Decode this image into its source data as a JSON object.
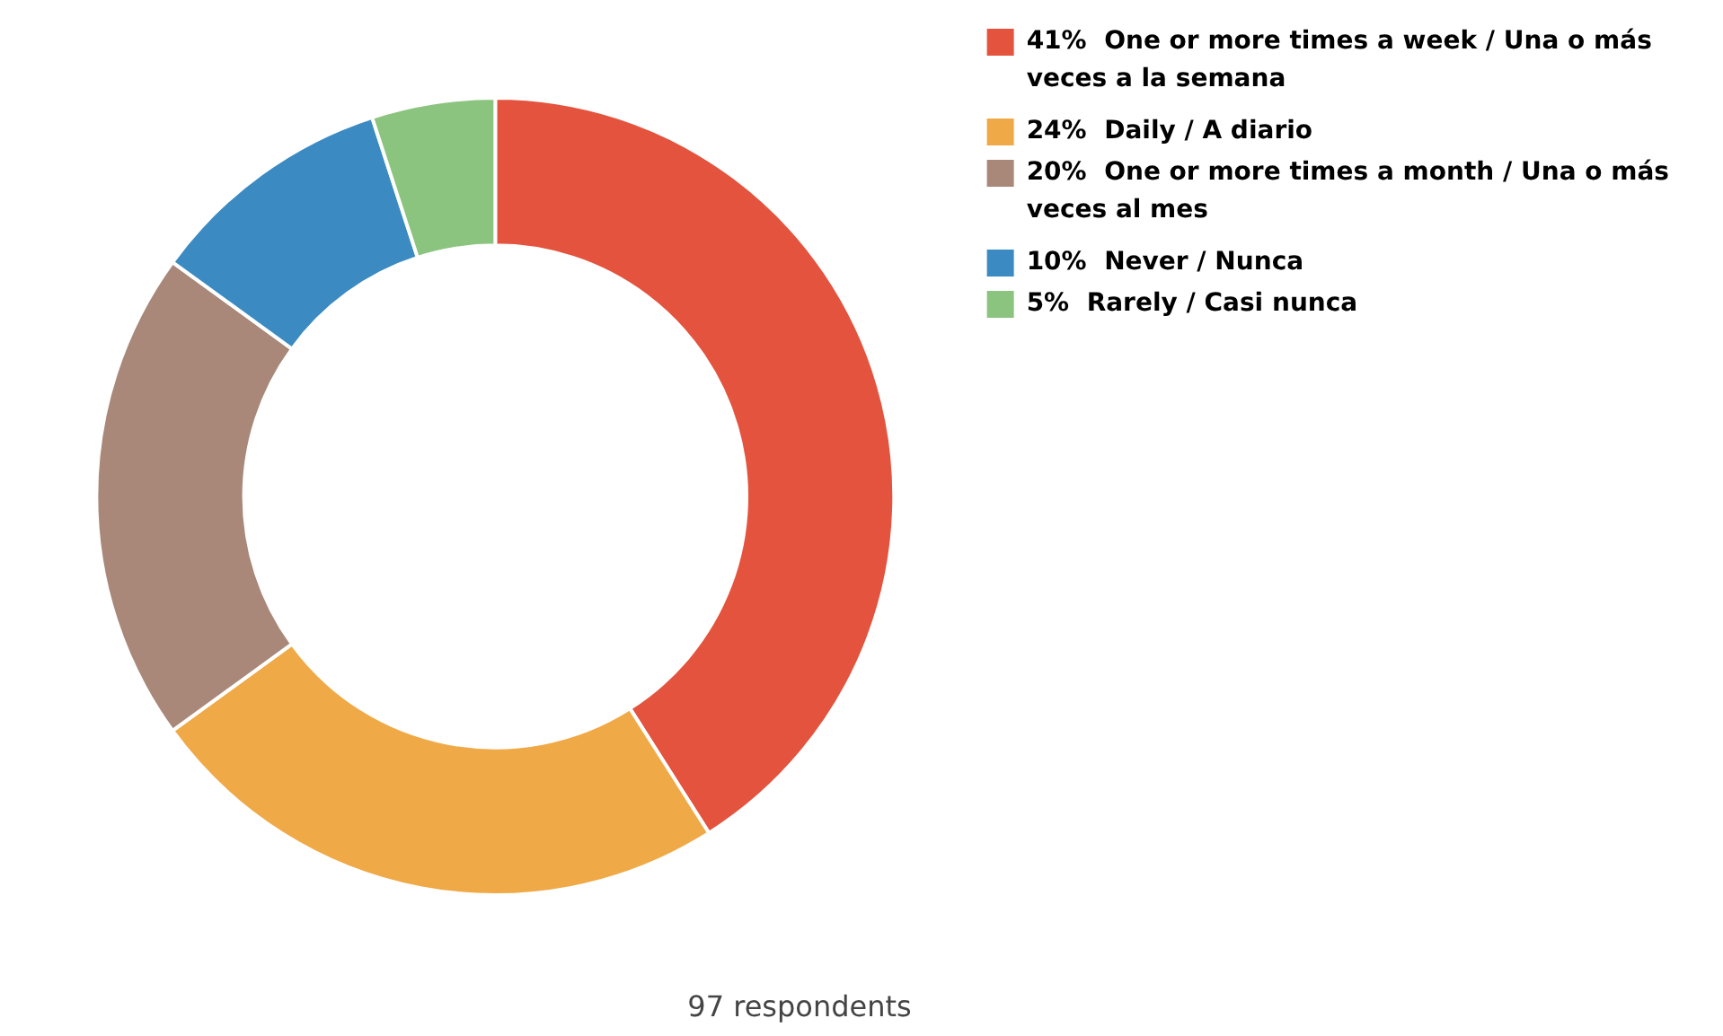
{
  "chart_data": {
    "type": "donut",
    "categories": [
      "One or more times a week / Una o más veces a la semana",
      "Daily / A diario",
      "One or more times a month / Una o más veces al mes",
      "Never / Nunca",
      "Rarely / Casi nunca"
    ],
    "values": [
      41,
      24,
      20,
      10,
      5
    ],
    "value_labels": [
      "41%",
      "24%",
      "20%",
      "10%",
      "5%"
    ],
    "colors": [
      "#e4533d",
      "#f0a947",
      "#a9887a",
      "#3b8bc2",
      "#8bc47e"
    ],
    "legend": "top right",
    "annotations": [
      "97 respondents"
    ]
  }
}
